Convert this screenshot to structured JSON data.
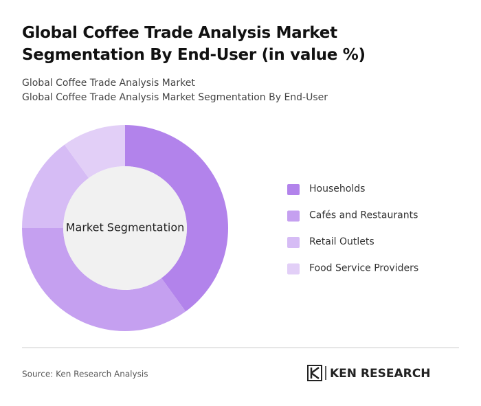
{
  "chart_data": {
    "type": "donut",
    "title": "Global Coffee Trade Analysis Market Segmentation By End-User (in value %)",
    "subtitles": [
      "Global Coffee Trade Analysis Market",
      "Global Coffee Trade Analysis Market Segmentation By End-User"
    ],
    "center_label": "Market Segmentation",
    "categories": [
      "Households",
      "Cafés and Restaurants",
      "Retail Outlets",
      "Food Service Providers"
    ],
    "values": [
      40,
      35,
      15,
      10
    ],
    "colors": [
      "#b283eb",
      "#c5a0f0",
      "#d6bcf5",
      "#e2cff7"
    ],
    "legend": "right"
  },
  "footer": {
    "source": "Source: Ken Research Analysis",
    "brand": "KEN RESEARCH"
  }
}
